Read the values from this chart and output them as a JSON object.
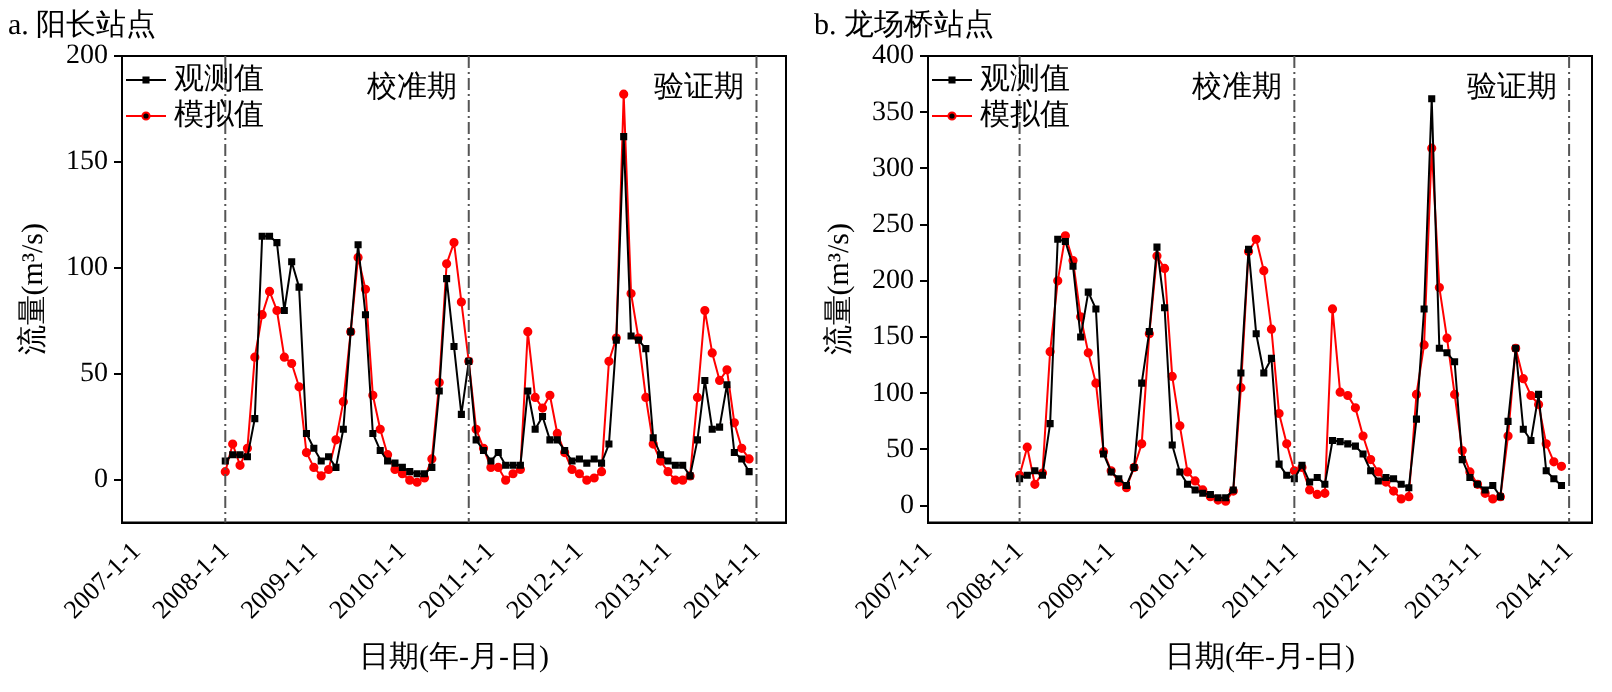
{
  "chart_data": [
    {
      "type": "line",
      "title": "a. 阳长站点",
      "xlabel": "日期(年-月-日)",
      "ylabel": "流量(m³/s)",
      "legend": "top left",
      "grid": false,
      "x": [
        "2008-01",
        "2008-02",
        "2008-03",
        "2008-04",
        "2008-05",
        "2008-06",
        "2008-07",
        "2008-08",
        "2008-09",
        "2008-10",
        "2008-11",
        "2008-12",
        "2009-01",
        "2009-02",
        "2009-03",
        "2009-04",
        "2009-05",
        "2009-06",
        "2009-07",
        "2009-08",
        "2009-09",
        "2009-10",
        "2009-11",
        "2009-12",
        "2010-01",
        "2010-02",
        "2010-03",
        "2010-04",
        "2010-05",
        "2010-06",
        "2010-07",
        "2010-08",
        "2010-09",
        "2010-10",
        "2010-11",
        "2010-12",
        "2011-01",
        "2011-02",
        "2011-03",
        "2011-04",
        "2011-05",
        "2011-06",
        "2011-07",
        "2011-08",
        "2011-09",
        "2011-10",
        "2011-11",
        "2011-12",
        "2012-01",
        "2012-02",
        "2012-03",
        "2012-04",
        "2012-05",
        "2012-06",
        "2012-07",
        "2012-08",
        "2012-09",
        "2012-10",
        "2012-11",
        "2012-12",
        "2013-01",
        "2013-02",
        "2013-03",
        "2013-04",
        "2013-05",
        "2013-06",
        "2013-07",
        "2013-08",
        "2013-09",
        "2013-10",
        "2013-11",
        "2013-12"
      ],
      "series": [
        {
          "name": "观测值",
          "color": "#000000",
          "marker": "square",
          "values": [
            9,
            12,
            12,
            11,
            29,
            115,
            115,
            112,
            80,
            103,
            91,
            22,
            15,
            9,
            11,
            6,
            24,
            70,
            111,
            78,
            22,
            14,
            9,
            8,
            6,
            4,
            3,
            3,
            6,
            42,
            95,
            63,
            31,
            56,
            19,
            14,
            9,
            13,
            7,
            7,
            7,
            42,
            24,
            30,
            19,
            19,
            14,
            9,
            10,
            8,
            10,
            8,
            17,
            66,
            162,
            68,
            66,
            62,
            20,
            12,
            9,
            7,
            7,
            2,
            19,
            47,
            24,
            25,
            45,
            13,
            10,
            4
          ]
        },
        {
          "name": "模拟值",
          "color": "#ff0000",
          "marker": "circle",
          "values": [
            4,
            17,
            7,
            15,
            58,
            78,
            89,
            80,
            58,
            55,
            44,
            13,
            6,
            2,
            5,
            19,
            37,
            70,
            105,
            90,
            40,
            24,
            12,
            5,
            3,
            0,
            -1,
            1,
            10,
            46,
            102,
            112,
            84,
            56,
            24,
            15,
            6,
            6,
            0,
            3,
            5,
            70,
            39,
            34,
            40,
            22,
            13,
            5,
            3,
            0,
            1,
            4,
            56,
            67,
            182,
            88,
            67,
            39,
            17,
            9,
            4,
            0,
            0,
            2,
            39,
            80,
            60,
            47,
            52,
            27,
            15,
            10
          ]
        }
      ],
      "xlim": [
        "2006-11",
        "2014-05"
      ],
      "xticks": [
        {
          "value": "2007-01-01",
          "label": "2007-1-1"
        },
        {
          "value": "2008-01-01",
          "label": "2008-1-1"
        },
        {
          "value": "2009-01-01",
          "label": "2009-1-1"
        },
        {
          "value": "2010-01-01",
          "label": "2010-1-1"
        },
        {
          "value": "2011-01-01",
          "label": "2011-1-1"
        },
        {
          "value": "2012-01-01",
          "label": "2012-1-1"
        },
        {
          "value": "2013-01-01",
          "label": "2013-1-1"
        },
        {
          "value": "2014-01-01",
          "label": "2014-1-1"
        }
      ],
      "ylim": [
        -20,
        200
      ],
      "yticks": [
        0,
        50,
        100,
        150,
        200
      ],
      "ref_lines": [
        {
          "axis": "x",
          "value": "2008-01",
          "line_style": "dashed",
          "color": "#555555"
        },
        {
          "axis": "x",
          "value": "2010-10",
          "line_style": "dashed",
          "color": "#555555"
        },
        {
          "axis": "x",
          "value": "2014-01",
          "line_style": "dashed",
          "color": "#555555"
        }
      ],
      "annotations": [
        "校准期",
        "验证期"
      ]
    },
    {
      "type": "line",
      "title": "b. 龙场桥站点",
      "xlabel": "日期(年-月-日)",
      "ylabel": "流量(m³/s)",
      "legend": "top left",
      "grid": false,
      "x": [
        "2008-01",
        "2008-02",
        "2008-03",
        "2008-04",
        "2008-05",
        "2008-06",
        "2008-07",
        "2008-08",
        "2008-09",
        "2008-10",
        "2008-11",
        "2008-12",
        "2009-01",
        "2009-02",
        "2009-03",
        "2009-04",
        "2009-05",
        "2009-06",
        "2009-07",
        "2009-08",
        "2009-09",
        "2009-10",
        "2009-11",
        "2009-12",
        "2010-01",
        "2010-02",
        "2010-03",
        "2010-04",
        "2010-05",
        "2010-06",
        "2010-07",
        "2010-08",
        "2010-09",
        "2010-10",
        "2010-11",
        "2010-12",
        "2011-01",
        "2011-02",
        "2011-03",
        "2011-04",
        "2011-05",
        "2011-06",
        "2011-07",
        "2011-08",
        "2011-09",
        "2011-10",
        "2011-11",
        "2011-12",
        "2012-01",
        "2012-02",
        "2012-03",
        "2012-04",
        "2012-05",
        "2012-06",
        "2012-07",
        "2012-08",
        "2012-09",
        "2012-10",
        "2012-11",
        "2012-12",
        "2013-01",
        "2013-02",
        "2013-03",
        "2013-04",
        "2013-05",
        "2013-06",
        "2013-07",
        "2013-08",
        "2013-09",
        "2013-10",
        "2013-11",
        "2013-12"
      ],
      "series": [
        {
          "name": "观测值",
          "color": "#000000",
          "marker": "square",
          "values": [
            24,
            27,
            31,
            27,
            73,
            237,
            235,
            213,
            150,
            190,
            175,
            46,
            30,
            24,
            18,
            34,
            109,
            155,
            230,
            176,
            54,
            30,
            19,
            14,
            11,
            10,
            7,
            7,
            14,
            118,
            228,
            153,
            118,
            131,
            37,
            27,
            24,
            36,
            21,
            25,
            19,
            58,
            57,
            55,
            53,
            46,
            31,
            22,
            25,
            24,
            19,
            16,
            77,
            175,
            362,
            140,
            136,
            128,
            41,
            25,
            19,
            14,
            18,
            8,
            75,
            140,
            68,
            58,
            99,
            31,
            24,
            18
          ]
        },
        {
          "name": "模拟值",
          "color": "#ff0000",
          "marker": "circle",
          "values": [
            27,
            52,
            19,
            29,
            137,
            200,
            240,
            218,
            168,
            136,
            109,
            48,
            31,
            21,
            16,
            34,
            55,
            153,
            222,
            211,
            115,
            71,
            30,
            22,
            14,
            8,
            5,
            4,
            13,
            105,
            226,
            237,
            209,
            157,
            82,
            55,
            31,
            34,
            14,
            10,
            11,
            175,
            101,
            98,
            87,
            62,
            41,
            30,
            21,
            13,
            6,
            8,
            99,
            143,
            318,
            194,
            149,
            99,
            49,
            30,
            19,
            11,
            6,
            8,
            62,
            140,
            113,
            98,
            90,
            55,
            39,
            35
          ]
        }
      ],
      "xlim": [
        "2007-01",
        "2014-04"
      ],
      "xticks": [
        {
          "value": "2007-01-01",
          "label": "2007-1-1"
        },
        {
          "value": "2008-01-01",
          "label": "2008-1-1"
        },
        {
          "value": "2009-01-01",
          "label": "2009-1-1"
        },
        {
          "value": "2010-01-01",
          "label": "2010-1-1"
        },
        {
          "value": "2011-01-01",
          "label": "2011-1-1"
        },
        {
          "value": "2012-01-01",
          "label": "2012-1-1"
        },
        {
          "value": "2013-01-01",
          "label": "2013-1-1"
        },
        {
          "value": "2014-01-01",
          "label": "2014-1-1"
        }
      ],
      "ylim": [
        -15,
        400
      ],
      "yticks": [
        0,
        50,
        100,
        150,
        200,
        250,
        300,
        350,
        400
      ],
      "ref_lines": [
        {
          "axis": "x",
          "value": "2008-01",
          "line_style": "dashed",
          "color": "#555555"
        },
        {
          "axis": "x",
          "value": "2011-01",
          "line_style": "dashed",
          "color": "#555555"
        },
        {
          "axis": "x",
          "value": "2014-01",
          "line_style": "dashed",
          "color": "#555555"
        }
      ],
      "annotations": [
        "校准期",
        "验证期"
      ]
    }
  ]
}
